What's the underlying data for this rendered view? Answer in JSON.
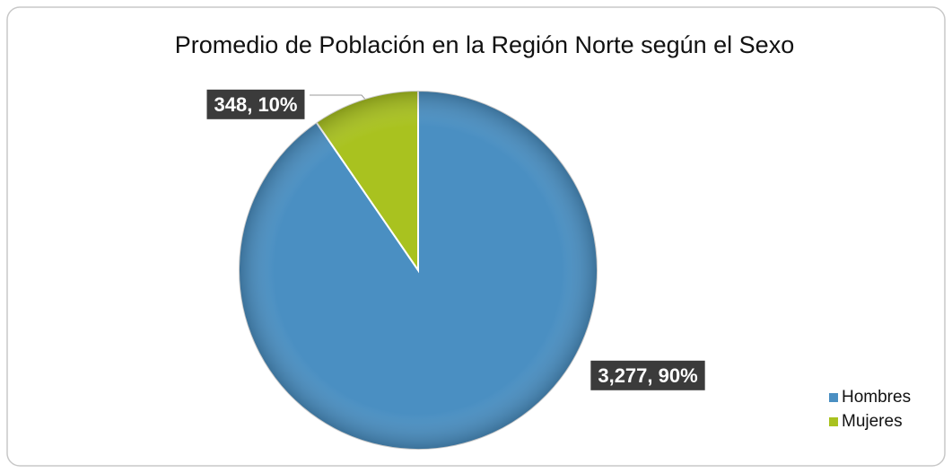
{
  "chart_data": {
    "type": "pie",
    "title": "Promedio de Población en la Región Norte según el Sexo",
    "categories": [
      "Hombres",
      "Mujeres"
    ],
    "values": [
      3277,
      348
    ],
    "value_labels": [
      "3,277, 90%",
      "348, 10%"
    ],
    "colors": [
      "#4a8fc2",
      "#a9c21f"
    ],
    "legend": "right"
  }
}
